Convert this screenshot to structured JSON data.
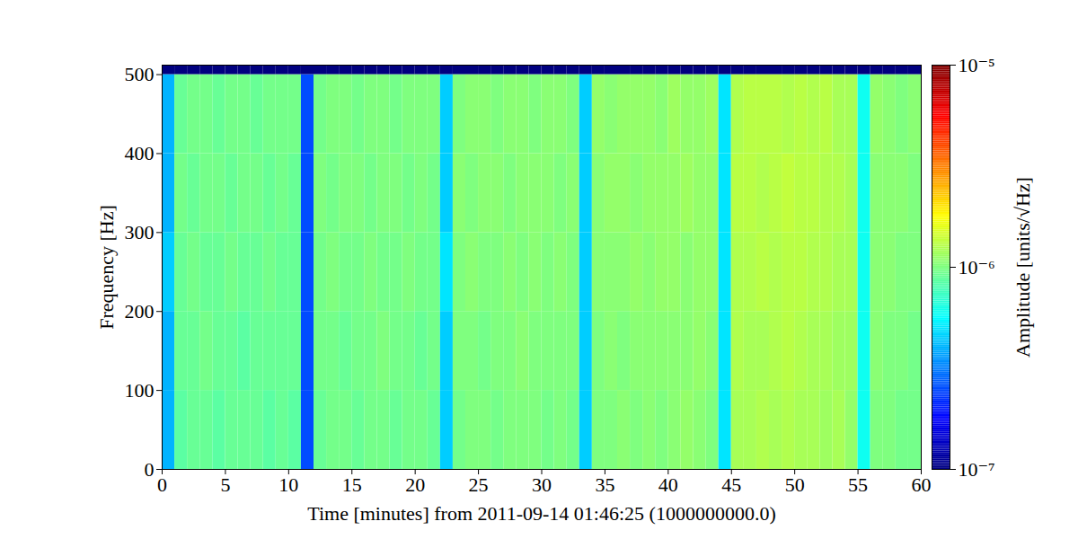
{
  "chart_data": {
    "type": "heatmap",
    "xlabel": "Time [minutes] from 2011-09-14 01:46:25 (1000000000.0)",
    "ylabel": "Frequency [Hz]",
    "xlim": [
      0,
      60
    ],
    "xticks": [
      0,
      5,
      10,
      15,
      20,
      25,
      30,
      35,
      40,
      45,
      50,
      55,
      60
    ],
    "ylim": [
      0,
      512
    ],
    "yticks": [
      0,
      100,
      200,
      300,
      400,
      500
    ],
    "x_bins": [
      0,
      1,
      2,
      3,
      4,
      5,
      6,
      7,
      8,
      9,
      10,
      11,
      12,
      13,
      14,
      15,
      16,
      17,
      18,
      19,
      20,
      21,
      22,
      23,
      24,
      25,
      26,
      27,
      28,
      29,
      30,
      31,
      32,
      33,
      34,
      35,
      36,
      37,
      38,
      39,
      40,
      41,
      42,
      43,
      44,
      45,
      46,
      47,
      48,
      49,
      50,
      51,
      52,
      53,
      54,
      55,
      56,
      57,
      58,
      59,
      60
    ],
    "y_bins": [
      0,
      100,
      200,
      300,
      400,
      500,
      512
    ],
    "cells": [
      [
        4e-07,
        8.5e-07,
        9e-07,
        9e-07,
        8.5e-07,
        9e-07,
        9e-07,
        9e-07,
        8.5e-07,
        9e-07,
        8.5e-07,
        2.5e-07,
        9e-07,
        9.5e-07,
        9.5e-07,
        9e-07,
        9.5e-07,
        9.5e-07,
        9e-07,
        9.5e-07,
        9.5e-07,
        9e-07,
        4.5e-07,
        9.5e-07,
        1e-06,
        1e-06,
        9.5e-07,
        1e-06,
        1e-06,
        1e-06,
        9.5e-07,
        1e-06,
        9.5e-07,
        4.5e-07,
        1e-06,
        1e-06,
        1.05e-06,
        1e-06,
        1.05e-06,
        1e-06,
        1.05e-06,
        1.1e-06,
        1.05e-06,
        1e-06,
        5e-07,
        1.2e-06,
        1.2e-06,
        1.25e-06,
        1.2e-06,
        1.25e-06,
        1.2e-06,
        1.2e-06,
        1.15e-06,
        1.2e-06,
        1.1e-06,
        6e-07,
        1e-06,
        1e-06,
        9.5e-07,
        9.5e-07
      ],
      [
        4e-07,
        9e-07,
        9e-07,
        9.5e-07,
        9e-07,
        9e-07,
        8.5e-07,
        9e-07,
        9e-07,
        9e-07,
        9e-07,
        2.5e-07,
        9.5e-07,
        9.5e-07,
        9e-07,
        9.5e-07,
        9.5e-07,
        1e-06,
        9.5e-07,
        9.5e-07,
        9e-07,
        9.5e-07,
        4.5e-07,
        1e-06,
        1e-06,
        9.5e-07,
        1e-06,
        1e-06,
        1.05e-06,
        1e-06,
        1e-06,
        1e-06,
        1e-06,
        4.5e-07,
        1e-06,
        1.05e-06,
        1e-06,
        1.05e-06,
        1.05e-06,
        1.05e-06,
        1.05e-06,
        1.05e-06,
        1.1e-06,
        1.05e-06,
        5e-07,
        1.25e-06,
        1.2e-06,
        1.2e-06,
        1.25e-06,
        1.3e-06,
        1.25e-06,
        1.2e-06,
        1.2e-06,
        1.15e-06,
        1.15e-06,
        6e-07,
        1.05e-06,
        1e-06,
        1e-06,
        9.5e-07
      ],
      [
        4.5e-07,
        9e-07,
        9.5e-07,
        9e-07,
        9e-07,
        9.5e-07,
        9e-07,
        9e-07,
        9.5e-07,
        9e-07,
        9e-07,
        2.5e-07,
        9.5e-07,
        1e-06,
        9.5e-07,
        9.5e-07,
        1e-06,
        9.5e-07,
        9.5e-07,
        1e-06,
        9.5e-07,
        9.5e-07,
        5e-07,
        1e-06,
        1.05e-06,
        1e-06,
        1e-06,
        1.05e-06,
        1e-06,
        1.05e-06,
        1e-06,
        1.05e-06,
        1e-06,
        4.5e-07,
        1.05e-06,
        1.05e-06,
        1.05e-06,
        1.1e-06,
        1.05e-06,
        1.1e-06,
        1.1e-06,
        1.05e-06,
        1.1e-06,
        1.1e-06,
        5e-07,
        1.25e-06,
        1.25e-06,
        1.3e-06,
        1.25e-06,
        1.3e-06,
        1.3e-06,
        1.25e-06,
        1.25e-06,
        1.2e-06,
        1.2e-06,
        6e-07,
        1.05e-06,
        1.05e-06,
        1e-06,
        1e-06
      ],
      [
        4e-07,
        9.5e-07,
        9e-07,
        9.5e-07,
        9.5e-07,
        9e-07,
        9.5e-07,
        9.5e-07,
        9e-07,
        9.5e-07,
        9e-07,
        2.5e-07,
        1e-06,
        9.5e-07,
        1e-06,
        1e-06,
        9.5e-07,
        1e-06,
        1e-06,
        9.5e-07,
        1e-06,
        9.5e-07,
        4.5e-07,
        1.05e-06,
        1e-06,
        1.05e-06,
        1.05e-06,
        1e-06,
        1.05e-06,
        1.05e-06,
        1.05e-06,
        1e-06,
        1.05e-06,
        4.5e-07,
        1.05e-06,
        1.1e-06,
        1.1e-06,
        1.05e-06,
        1.1e-06,
        1.1e-06,
        1.1e-06,
        1.15e-06,
        1.1e-06,
        1.1e-06,
        5e-07,
        1.3e-06,
        1.3e-06,
        1.25e-06,
        1.3e-06,
        1.35e-06,
        1.3e-06,
        1.3e-06,
        1.25e-06,
        1.25e-06,
        1.2e-06,
        6e-07,
        1.05e-06,
        1.05e-06,
        1.05e-06,
        1e-06
      ],
      [
        4e-07,
        9e-07,
        9.5e-07,
        9.5e-07,
        9e-07,
        9.5e-07,
        9.5e-07,
        9e-07,
        9.5e-07,
        9.5e-07,
        9.5e-07,
        2.5e-07,
        9.5e-07,
        1e-06,
        1e-06,
        9.5e-07,
        1e-06,
        1e-06,
        9.5e-07,
        1e-06,
        1e-06,
        1e-06,
        4.5e-07,
        1e-06,
        1.05e-06,
        1.05e-06,
        1e-06,
        1.05e-06,
        1.05e-06,
        1e-06,
        1.05e-06,
        1.05e-06,
        1e-06,
        4.5e-07,
        1.1e-06,
        1.05e-06,
        1.1e-06,
        1.1e-06,
        1.1e-06,
        1.05e-06,
        1.15e-06,
        1.1e-06,
        1.1e-06,
        1.15e-06,
        5e-07,
        1.25e-06,
        1.3e-06,
        1.3e-06,
        1.3e-06,
        1.25e-06,
        1.3e-06,
        1.25e-06,
        1.3e-06,
        1.2e-06,
        1.2e-06,
        6e-07,
        1.1e-06,
        1.05e-06,
        1e-06,
        1.05e-06
      ],
      [
        1e-07,
        1e-07,
        1e-07,
        1e-07,
        1e-07,
        1e-07,
        1e-07,
        1e-07,
        1e-07,
        1e-07,
        1e-07,
        1e-07,
        1e-07,
        1e-07,
        1e-07,
        1e-07,
        1e-07,
        1e-07,
        1e-07,
        1e-07,
        1e-07,
        1e-07,
        1e-07,
        1e-07,
        1e-07,
        1e-07,
        1e-07,
        1e-07,
        1e-07,
        1e-07,
        1e-07,
        1e-07,
        1e-07,
        1e-07,
        1e-07,
        1e-07,
        1e-07,
        1e-07,
        1e-07,
        1e-07,
        1e-07,
        1e-07,
        1e-07,
        1e-07,
        1e-07,
        1e-07,
        1e-07,
        1e-07,
        1e-07,
        1e-07,
        1e-07,
        1e-07,
        1e-07,
        1e-07,
        1e-07,
        1e-07,
        1e-07,
        1e-07,
        1e-07,
        1e-07
      ]
    ],
    "colorbar": {
      "label": "Amplitude [units/√Hz]",
      "lim": [
        1e-07,
        1e-05
      ],
      "ticks": [
        {
          "value": 1e-07,
          "label": "10⁻⁷"
        },
        {
          "value": 1e-06,
          "label": "10⁻⁶"
        },
        {
          "value": 1e-05,
          "label": "10⁻⁵"
        }
      ],
      "log": true
    }
  }
}
